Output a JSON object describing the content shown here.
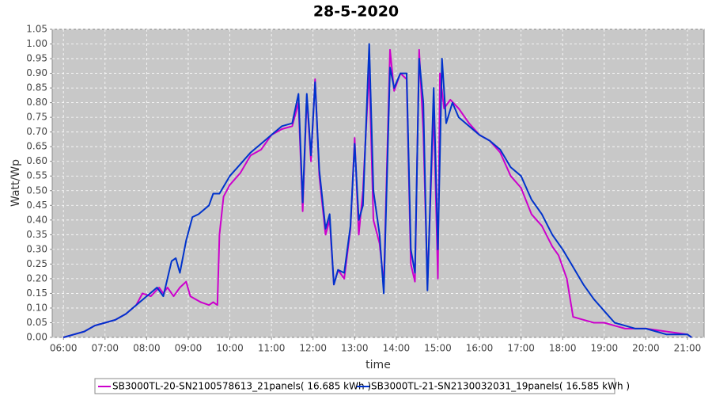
{
  "chart_data": {
    "type": "line",
    "title": "28-5-2020",
    "xlabel": "time",
    "ylabel": "Watt/Wp",
    "xlim": [
      5.73,
      21.4
    ],
    "ylim": [
      0,
      1.05
    ],
    "grid": true,
    "legend": "bottom",
    "xticks": [
      {
        "value": 6,
        "label": "06:00"
      },
      {
        "value": 7,
        "label": "07:00"
      },
      {
        "value": 8,
        "label": "08:00"
      },
      {
        "value": 9,
        "label": "09:00"
      },
      {
        "value": 10,
        "label": "10:00"
      },
      {
        "value": 11,
        "label": "11:00"
      },
      {
        "value": 12,
        "label": "12:00"
      },
      {
        "value": 13,
        "label": "13:00"
      },
      {
        "value": 14,
        "label": "14:00"
      },
      {
        "value": 15,
        "label": "15:00"
      },
      {
        "value": 16,
        "label": "16:00"
      },
      {
        "value": 17,
        "label": "17:00"
      },
      {
        "value": 18,
        "label": "18:00"
      },
      {
        "value": 19,
        "label": "19:00"
      },
      {
        "value": 20,
        "label": "20:00"
      },
      {
        "value": 21,
        "label": "21:00"
      }
    ],
    "yticks": [
      {
        "value": 0,
        "label": "0.00"
      },
      {
        "value": 0.05,
        "label": "0.05"
      },
      {
        "value": 0.1,
        "label": "0.10"
      },
      {
        "value": 0.15,
        "label": "0.15"
      },
      {
        "value": 0.2,
        "label": "0.20"
      },
      {
        "value": 0.25,
        "label": "0.25"
      },
      {
        "value": 0.3,
        "label": "0.30"
      },
      {
        "value": 0.35,
        "label": "0.35"
      },
      {
        "value": 0.4,
        "label": "0.40"
      },
      {
        "value": 0.45,
        "label": "0.45"
      },
      {
        "value": 0.5,
        "label": "0.50"
      },
      {
        "value": 0.55,
        "label": "0.55"
      },
      {
        "value": 0.6,
        "label": "0.60"
      },
      {
        "value": 0.65,
        "label": "0.65"
      },
      {
        "value": 0.7,
        "label": "0.70"
      },
      {
        "value": 0.75,
        "label": "0.75"
      },
      {
        "value": 0.8,
        "label": "0.80"
      },
      {
        "value": 0.85,
        "label": "0.85"
      },
      {
        "value": 0.9,
        "label": "0.90"
      },
      {
        "value": 0.95,
        "label": "0.95"
      },
      {
        "value": 1.0,
        "label": "1.00"
      },
      {
        "value": 1.05,
        "label": "1.05"
      }
    ],
    "series": [
      {
        "name": "SB3000TL-20-SN2100578613_21panels( 16.685 kWh )",
        "color": "#cc00cc",
        "x": [
          6.0,
          6.25,
          6.5,
          6.75,
          7.0,
          7.25,
          7.5,
          7.75,
          7.9,
          8.1,
          8.3,
          8.4,
          8.5,
          8.65,
          8.8,
          8.95,
          9.05,
          9.3,
          9.5,
          9.6,
          9.7,
          9.75,
          9.85,
          10.0,
          10.25,
          10.5,
          10.75,
          11.0,
          11.25,
          11.5,
          11.65,
          11.75,
          11.85,
          11.95,
          12.05,
          12.15,
          12.3,
          12.4,
          12.5,
          12.6,
          12.75,
          12.9,
          13.0,
          13.1,
          13.2,
          13.35,
          13.45,
          13.6,
          13.7,
          13.85,
          13.95,
          14.1,
          14.25,
          14.35,
          14.45,
          14.55,
          14.65,
          14.75,
          14.9,
          15.0,
          15.05,
          15.15,
          15.3,
          15.5,
          15.75,
          16.0,
          16.25,
          16.5,
          16.75,
          17.0,
          17.25,
          17.5,
          17.75,
          17.9,
          18.1,
          18.25,
          18.5,
          18.75,
          19.0,
          19.25,
          19.5,
          19.75,
          20.0,
          20.5,
          21.0,
          21.1
        ],
        "values": [
          0.0,
          0.01,
          0.02,
          0.04,
          0.05,
          0.06,
          0.08,
          0.11,
          0.15,
          0.14,
          0.17,
          0.15,
          0.17,
          0.14,
          0.17,
          0.19,
          0.14,
          0.12,
          0.11,
          0.12,
          0.11,
          0.35,
          0.48,
          0.52,
          0.56,
          0.62,
          0.64,
          0.69,
          0.71,
          0.72,
          0.8,
          0.43,
          0.82,
          0.6,
          0.88,
          0.55,
          0.35,
          0.4,
          0.18,
          0.23,
          0.2,
          0.37,
          0.68,
          0.35,
          0.5,
          0.92,
          0.4,
          0.32,
          0.18,
          0.98,
          0.84,
          0.9,
          0.88,
          0.25,
          0.19,
          0.98,
          0.7,
          0.18,
          0.78,
          0.2,
          0.9,
          0.78,
          0.81,
          0.78,
          0.73,
          0.69,
          0.67,
          0.63,
          0.55,
          0.51,
          0.42,
          0.38,
          0.31,
          0.28,
          0.2,
          0.07,
          0.06,
          0.05,
          0.05,
          0.04,
          0.03,
          0.03,
          0.03,
          0.02,
          0.01,
          0.0
        ]
      },
      {
        "name": "SB3000TL-21-SN2130032031_19panels( 16.585 kWh )",
        "color": "#0033cc",
        "x": [
          6.0,
          6.25,
          6.5,
          6.75,
          7.0,
          7.25,
          7.5,
          7.75,
          8.0,
          8.25,
          8.4,
          8.6,
          8.7,
          8.8,
          8.95,
          9.1,
          9.25,
          9.5,
          9.6,
          9.75,
          10.0,
          10.25,
          10.5,
          10.75,
          11.0,
          11.25,
          11.5,
          11.65,
          11.75,
          11.85,
          11.95,
          12.05,
          12.15,
          12.3,
          12.4,
          12.5,
          12.6,
          12.75,
          12.9,
          13.0,
          13.1,
          13.2,
          13.35,
          13.45,
          13.6,
          13.7,
          13.85,
          13.95,
          14.1,
          14.25,
          14.35,
          14.45,
          14.55,
          14.65,
          14.75,
          14.9,
          15.0,
          15.1,
          15.2,
          15.35,
          15.5,
          15.75,
          16.0,
          16.25,
          16.5,
          16.75,
          17.0,
          17.25,
          17.5,
          17.75,
          18.0,
          18.25,
          18.5,
          18.75,
          19.0,
          19.25,
          19.5,
          19.75,
          20.0,
          20.5,
          21.0,
          21.1
        ],
        "values": [
          0.0,
          0.01,
          0.02,
          0.04,
          0.05,
          0.06,
          0.08,
          0.11,
          0.14,
          0.17,
          0.14,
          0.26,
          0.27,
          0.22,
          0.33,
          0.41,
          0.42,
          0.45,
          0.49,
          0.49,
          0.55,
          0.59,
          0.63,
          0.66,
          0.69,
          0.72,
          0.73,
          0.83,
          0.46,
          0.83,
          0.62,
          0.87,
          0.57,
          0.37,
          0.42,
          0.18,
          0.23,
          0.22,
          0.38,
          0.66,
          0.4,
          0.45,
          1.0,
          0.5,
          0.35,
          0.15,
          0.92,
          0.85,
          0.9,
          0.9,
          0.3,
          0.22,
          0.95,
          0.8,
          0.16,
          0.85,
          0.3,
          0.95,
          0.73,
          0.8,
          0.75,
          0.72,
          0.69,
          0.67,
          0.64,
          0.58,
          0.55,
          0.47,
          0.42,
          0.35,
          0.3,
          0.24,
          0.18,
          0.13,
          0.09,
          0.05,
          0.04,
          0.03,
          0.03,
          0.01,
          0.01,
          0.0
        ]
      }
    ]
  }
}
